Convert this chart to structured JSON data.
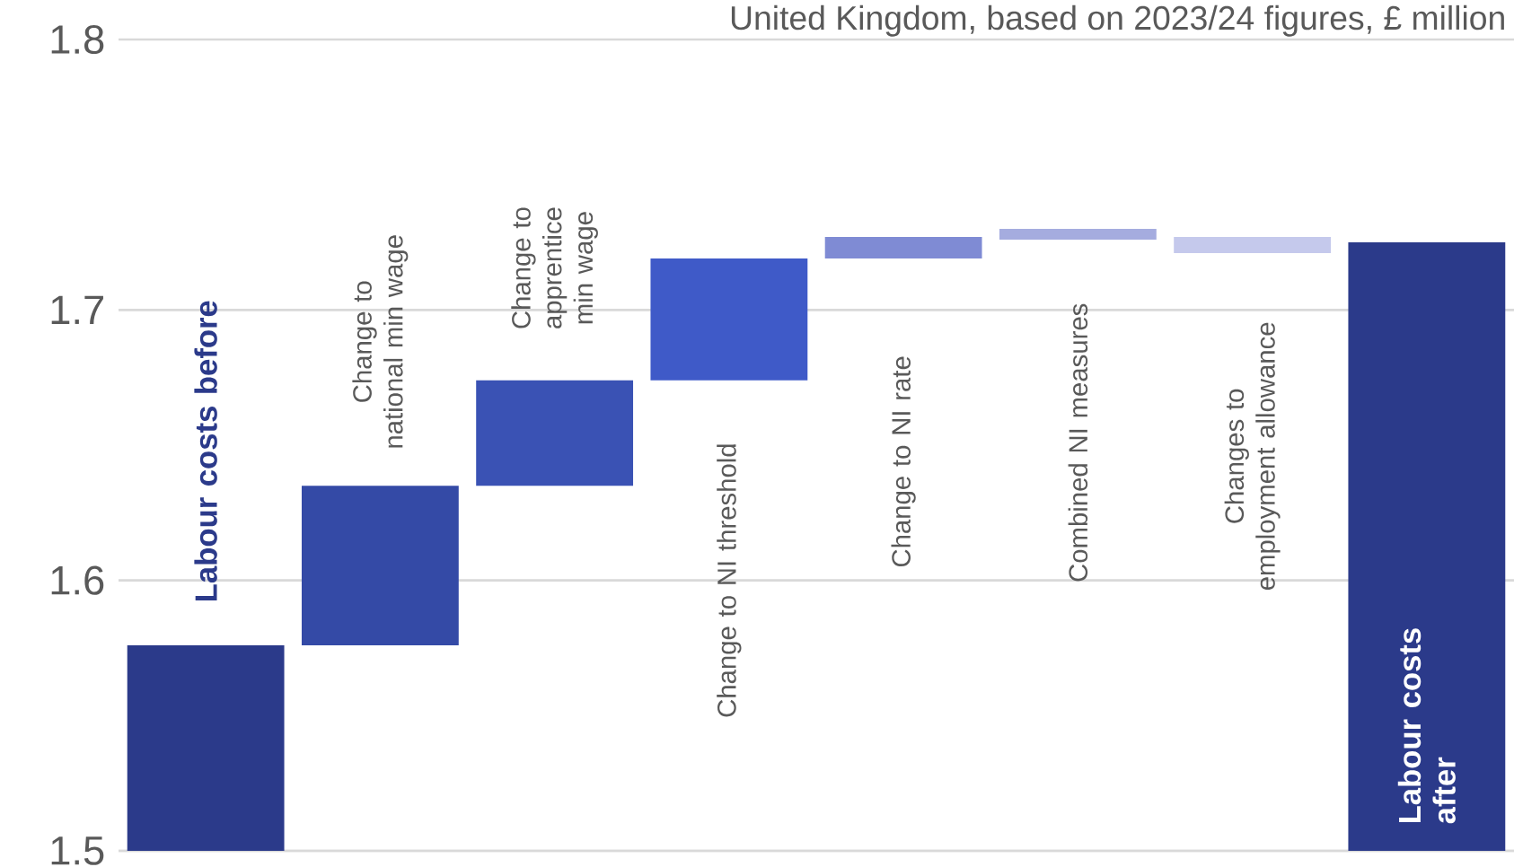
{
  "chart_data": {
    "type": "bar",
    "subtitle": "United Kingdom, based on 2023/24 figures, £ million",
    "categories": [
      "Labour costs before",
      "Change to national min wage",
      "Change to apprentice min wage",
      "Change to NI threshold",
      "Change to NI rate",
      "Combined NI measures",
      "Changes to employment allowance",
      "Labour costs after"
    ],
    "base": [
      1.5,
      1.576,
      1.635,
      1.674,
      1.719,
      1.726,
      1.727,
      1.5
    ],
    "values": [
      0.076,
      0.059,
      0.039,
      0.045,
      0.008,
      0.004,
      -0.006,
      0.225
    ],
    "colors": [
      "#2b3a8a",
      "#344aa6",
      "#3a52b4",
      "#3f5ac8",
      "#7f8bd4",
      "#a5acdf",
      "#c5c9ec",
      "#2b3a8a"
    ],
    "ylim": [
      1.5,
      1.8
    ],
    "yticks": [
      1.5,
      1.6,
      1.7,
      1.8
    ],
    "grid": "y"
  }
}
